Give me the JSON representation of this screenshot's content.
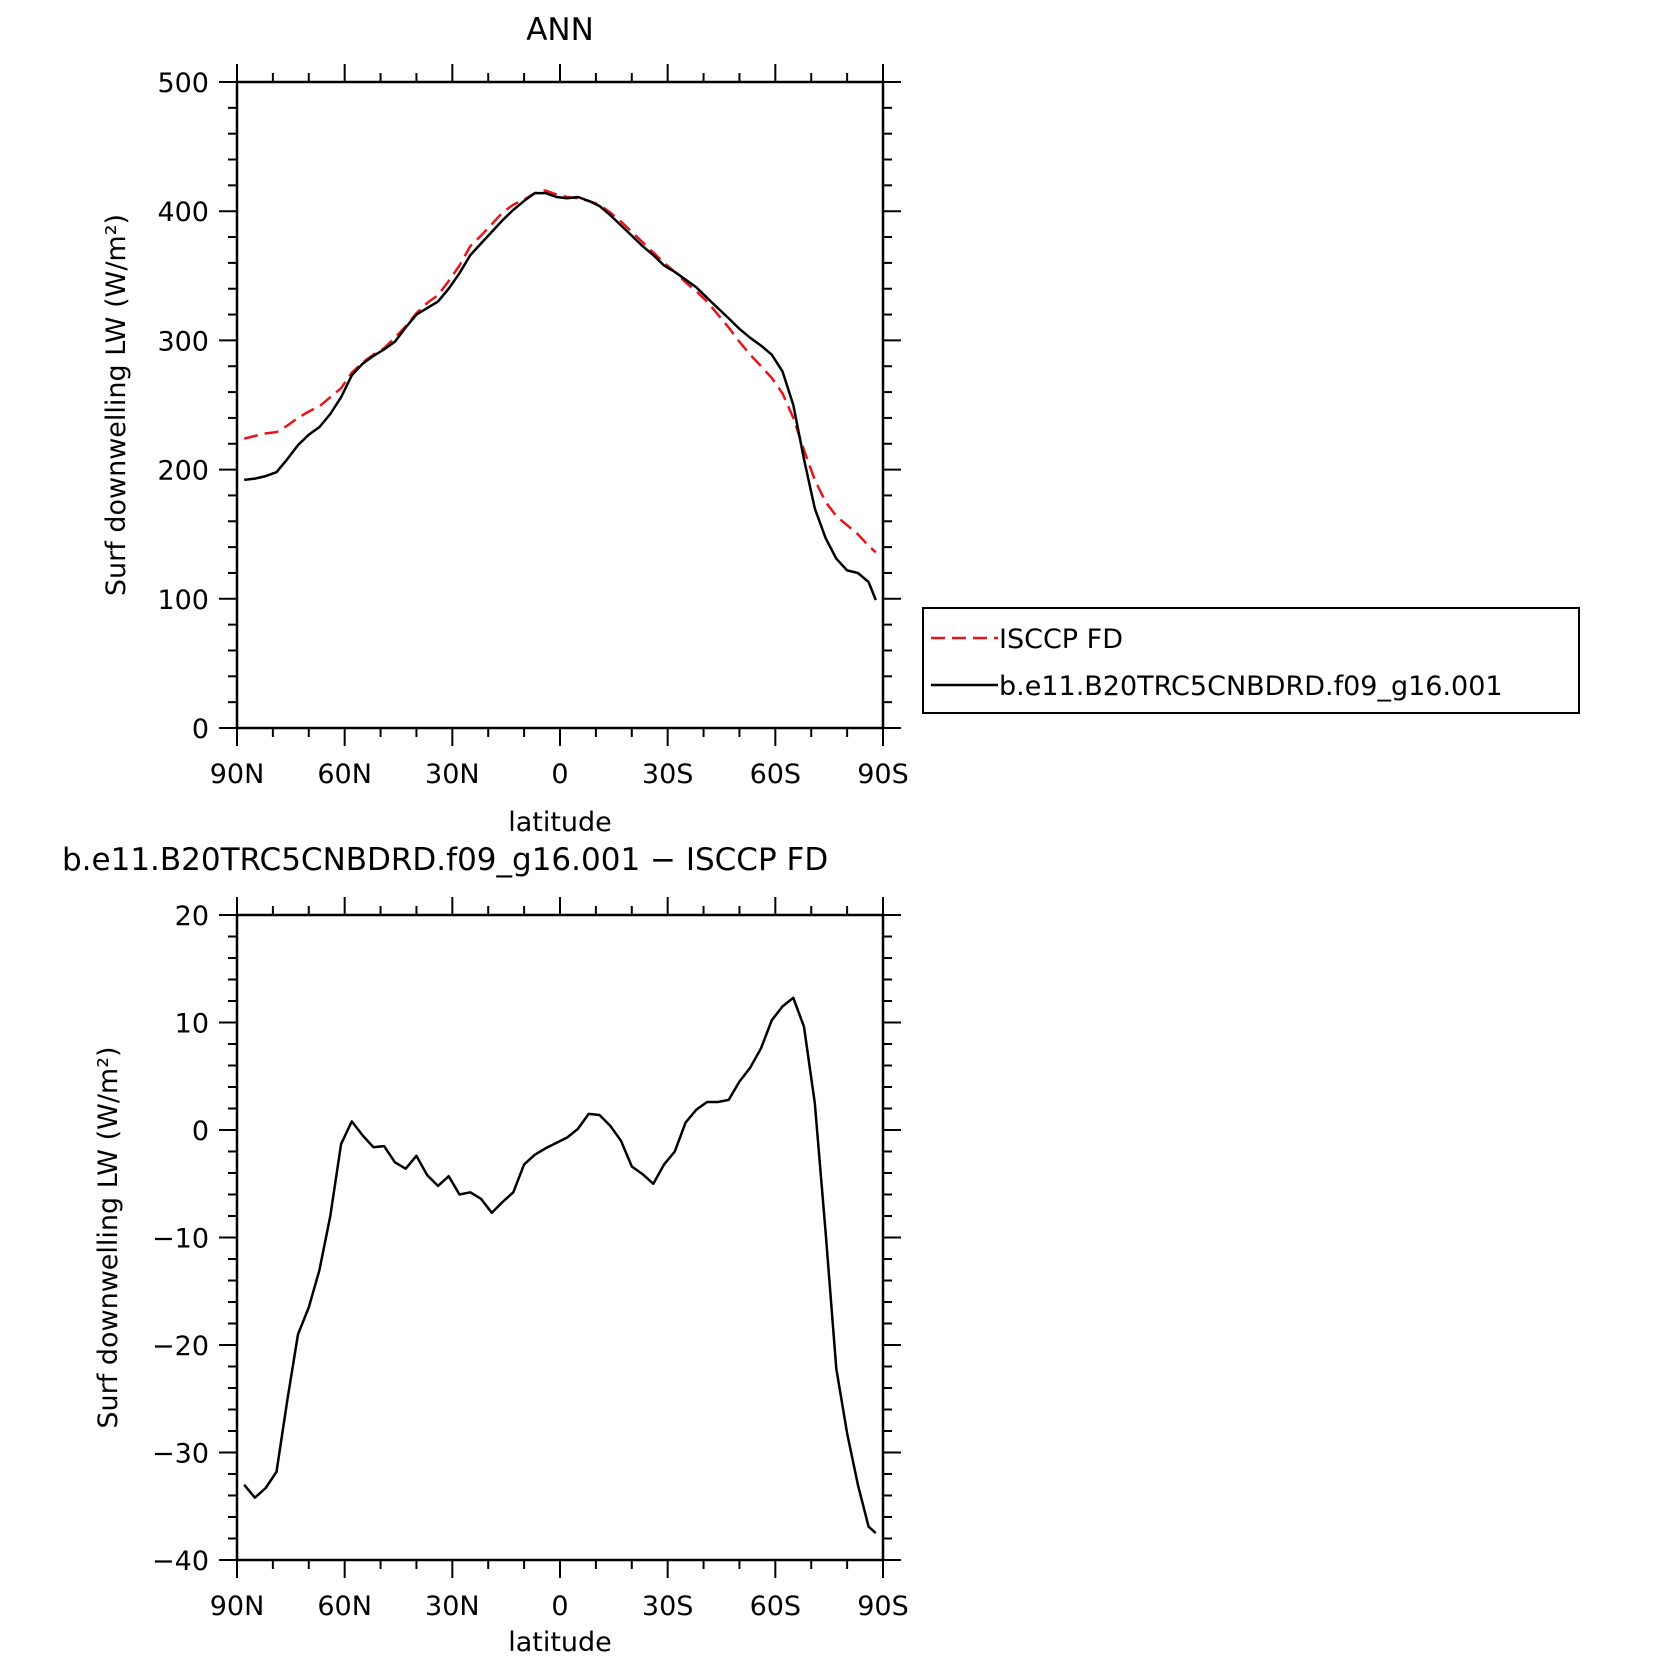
{
  "colors": {
    "isccp": "#e8141b",
    "model": "#000000",
    "axis": "#000000"
  },
  "chart_data": [
    {
      "type": "line",
      "title": "ANN",
      "xlabel": "latitude",
      "ylabel": "Surf downwelling LW (W/m²)",
      "xlim": [
        90,
        -90
      ],
      "ylim": [
        0,
        500
      ],
      "xticks": [
        {
          "value": 90,
          "label": "90N"
        },
        {
          "value": 60,
          "label": "60N"
        },
        {
          "value": 30,
          "label": "30N"
        },
        {
          "value": 0,
          "label": "0"
        },
        {
          "value": -30,
          "label": "30S"
        },
        {
          "value": -60,
          "label": "60S"
        },
        {
          "value": -90,
          "label": "90S"
        }
      ],
      "yticks": [
        {
          "value": 0,
          "label": "0"
        },
        {
          "value": 100,
          "label": "100"
        },
        {
          "value": 200,
          "label": "200"
        },
        {
          "value": 300,
          "label": "300"
        },
        {
          "value": 400,
          "label": "400"
        },
        {
          "value": 500,
          "label": "500"
        }
      ],
      "grid": false,
      "legend": "right",
      "series": [
        {
          "name": "ISCCP FD",
          "style": "dashed",
          "color": "#e8141b",
          "x": [
            88,
            85,
            82,
            79,
            76,
            73,
            70,
            67,
            64,
            61,
            58,
            55,
            52,
            49,
            46,
            43,
            40,
            37,
            34,
            31,
            28,
            25,
            22,
            19,
            16,
            13,
            10,
            7,
            4,
            1,
            -2,
            -5,
            -8,
            -11,
            -14,
            -17,
            -20,
            -23,
            -26,
            -29,
            -32,
            -35,
            -38,
            -41,
            -44,
            -47,
            -50,
            -53,
            -56,
            -59,
            -62,
            -65,
            -68,
            -71,
            -74,
            -77,
            -80,
            -83,
            -86,
            -88
          ],
          "values": [
            224,
            226,
            228,
            229,
            234,
            240,
            245,
            249,
            256,
            263,
            275,
            283,
            289,
            294,
            302,
            311,
            321,
            329,
            335,
            346,
            358,
            373,
            381,
            390,
            399,
            405,
            409,
            414,
            416,
            413,
            411,
            410,
            408,
            405,
            399,
            392,
            384,
            376,
            368,
            360,
            353,
            345,
            338,
            330,
            320,
            310,
            299,
            289,
            280,
            271,
            259,
            240,
            215,
            192,
            175,
            164,
            157,
            150,
            141,
            136
          ]
        },
        {
          "name": "b.e11.B20TRC5CNBDRD.f09_g16.001",
          "style": "solid",
          "color": "#000000",
          "x": [
            88,
            85,
            82,
            79,
            76,
            73,
            70,
            67,
            64,
            61,
            58,
            55,
            52,
            49,
            46,
            43,
            40,
            37,
            34,
            31,
            28,
            25,
            22,
            19,
            16,
            13,
            10,
            7,
            4,
            1,
            -2,
            -5,
            -8,
            -11,
            -14,
            -17,
            -20,
            -23,
            -26,
            -29,
            -32,
            -35,
            -38,
            -41,
            -44,
            -47,
            -50,
            -53,
            -56,
            -59,
            -62,
            -65,
            -68,
            -71,
            -74,
            -77,
            -80,
            -83,
            -86,
            -88
          ],
          "values": [
            192,
            193,
            195,
            198,
            208,
            219,
            227,
            233,
            243,
            256,
            273,
            282,
            288,
            293,
            299,
            310,
            320,
            325,
            330,
            340,
            352,
            366,
            375,
            384,
            393,
            401,
            408,
            414,
            414,
            411,
            410,
            411,
            408,
            404,
            397,
            389,
            381,
            373,
            366,
            358,
            353,
            347,
            341,
            333,
            325,
            317,
            309,
            302,
            296,
            289,
            276,
            250,
            208,
            170,
            147,
            131,
            122,
            120,
            113,
            99
          ]
        }
      ]
    },
    {
      "type": "line",
      "title": "b.e11.B20TRC5CNBDRD.f09_g16.001 − ISCCP FD",
      "xlabel": "latitude",
      "ylabel": "Surf downwelling LW (W/m²)",
      "xlim": [
        90,
        -90
      ],
      "ylim": [
        -40,
        20
      ],
      "xticks": [
        {
          "value": 90,
          "label": "90N"
        },
        {
          "value": 60,
          "label": "60N"
        },
        {
          "value": 30,
          "label": "30N"
        },
        {
          "value": 0,
          "label": "0"
        },
        {
          "value": -30,
          "label": "30S"
        },
        {
          "value": -60,
          "label": "60S"
        },
        {
          "value": -90,
          "label": "90S"
        }
      ],
      "yticks": [
        {
          "value": -40,
          "label": "−40"
        },
        {
          "value": -30,
          "label": "−30"
        },
        {
          "value": -20,
          "label": "−20"
        },
        {
          "value": -10,
          "label": "−10"
        },
        {
          "value": 0,
          "label": "0"
        },
        {
          "value": 10,
          "label": "10"
        },
        {
          "value": 20,
          "label": "20"
        }
      ],
      "grid": false,
      "series": [
        {
          "style": "solid",
          "color": "#000000",
          "x": [
            88,
            85,
            82,
            79,
            76,
            73,
            70,
            67,
            64,
            61,
            58,
            55,
            52,
            49,
            46,
            43,
            40,
            37,
            34,
            31,
            28,
            25,
            22,
            19,
            16,
            13,
            10,
            7,
            4,
            1,
            -2,
            -5,
            -8,
            -11,
            -14,
            -17,
            -20,
            -23,
            -26,
            -29,
            -32,
            -35,
            -38,
            -41,
            -44,
            -47,
            -50,
            -53,
            -56,
            -59,
            -62,
            -65,
            -68,
            -71,
            -74,
            -77,
            -80,
            -83,
            -86,
            -88
          ],
          "values": [
            -33,
            -34.2,
            -33.3,
            -31.8,
            -25.2,
            -19.0,
            -16.5,
            -13.0,
            -8.0,
            -1.3,
            0.8,
            -0.5,
            -1.6,
            -1.5,
            -3.0,
            -3.6,
            -2.4,
            -4.2,
            -5.2,
            -4.3,
            -6.0,
            -5.8,
            -6.4,
            -7.7,
            -6.7,
            -5.8,
            -3.2,
            -2.3,
            -1.7,
            -1.2,
            -0.7,
            0.1,
            1.5,
            1.4,
            0.4,
            -1.0,
            -3.4,
            -4.1,
            -5.0,
            -3.2,
            -2.0,
            0.7,
            1.9,
            2.6,
            2.6,
            2.8,
            4.5,
            5.8,
            7.6,
            10.2,
            11.5,
            12.3,
            9.6,
            2.5,
            -9.5,
            -22.2,
            -28.2,
            -33.0,
            -36.9,
            -37.5
          ]
        }
      ]
    }
  ]
}
